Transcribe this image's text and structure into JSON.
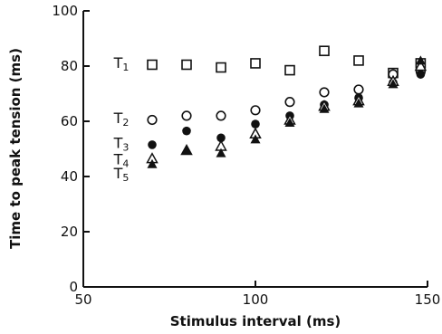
{
  "chart_data": {
    "type": "scatter",
    "xlabel": "Stimulus interval (ms)",
    "ylabel": "Time to peak tension (ms)",
    "xlim": [
      50,
      150
    ],
    "ylim": [
      0,
      100
    ],
    "x_ticks": [
      50,
      100,
      150
    ],
    "x_tick_labels": [
      "50",
      "100",
      "150"
    ],
    "y_ticks": [
      0,
      20,
      40,
      60,
      80,
      100
    ],
    "y_tick_labels": [
      "0",
      "20",
      "40",
      "60",
      "80",
      "100"
    ],
    "grid": false,
    "series": [
      {
        "name": "T1",
        "label_main": "T",
        "label_sub": "1",
        "marker": "open-square",
        "label_x": 62,
        "label_y": 81,
        "x": [
          70,
          80,
          90,
          100,
          110,
          120,
          130,
          140,
          148
        ],
        "y": [
          80.5,
          80.5,
          79.5,
          81,
          78.5,
          85.5,
          82,
          77.5,
          81
        ]
      },
      {
        "name": "T2",
        "label_main": "T",
        "label_sub": "2",
        "marker": "open-circle",
        "label_x": 62,
        "label_y": 61,
        "x": [
          70,
          80,
          90,
          100,
          110,
          120,
          130,
          140,
          148
        ],
        "y": [
          60.5,
          62,
          62,
          64,
          67,
          70.5,
          71.5,
          77,
          78
        ]
      },
      {
        "name": "T3",
        "label_main": "T",
        "label_sub": "3",
        "marker": "filled-circle",
        "label_x": 62,
        "label_y": 52,
        "x": [
          70,
          80,
          90,
          100,
          110,
          120,
          130,
          140,
          148
        ],
        "y": [
          51.5,
          56.5,
          54,
          59,
          62,
          66,
          68.5,
          74,
          77
        ]
      },
      {
        "name": "T4",
        "label_main": "T",
        "label_sub": "4",
        "marker": "open-triangle",
        "label_x": 62,
        "label_y": 46,
        "x": [
          70,
          80,
          90,
          100,
          110,
          120,
          130,
          140,
          148
        ],
        "y": [
          46.5,
          49.5,
          51,
          55.5,
          60.5,
          65.5,
          67.5,
          74.5,
          80
        ]
      },
      {
        "name": "T5",
        "label_main": "T",
        "label_sub": "5",
        "marker": "filled-triangle",
        "label_x": 62,
        "label_y": 41,
        "x": [
          70,
          80,
          90,
          100,
          110,
          120,
          130,
          140,
          148
        ],
        "y": [
          44.5,
          49.5,
          48.5,
          53.5,
          59.5,
          64.5,
          66.5,
          73.5,
          82
        ]
      }
    ]
  }
}
